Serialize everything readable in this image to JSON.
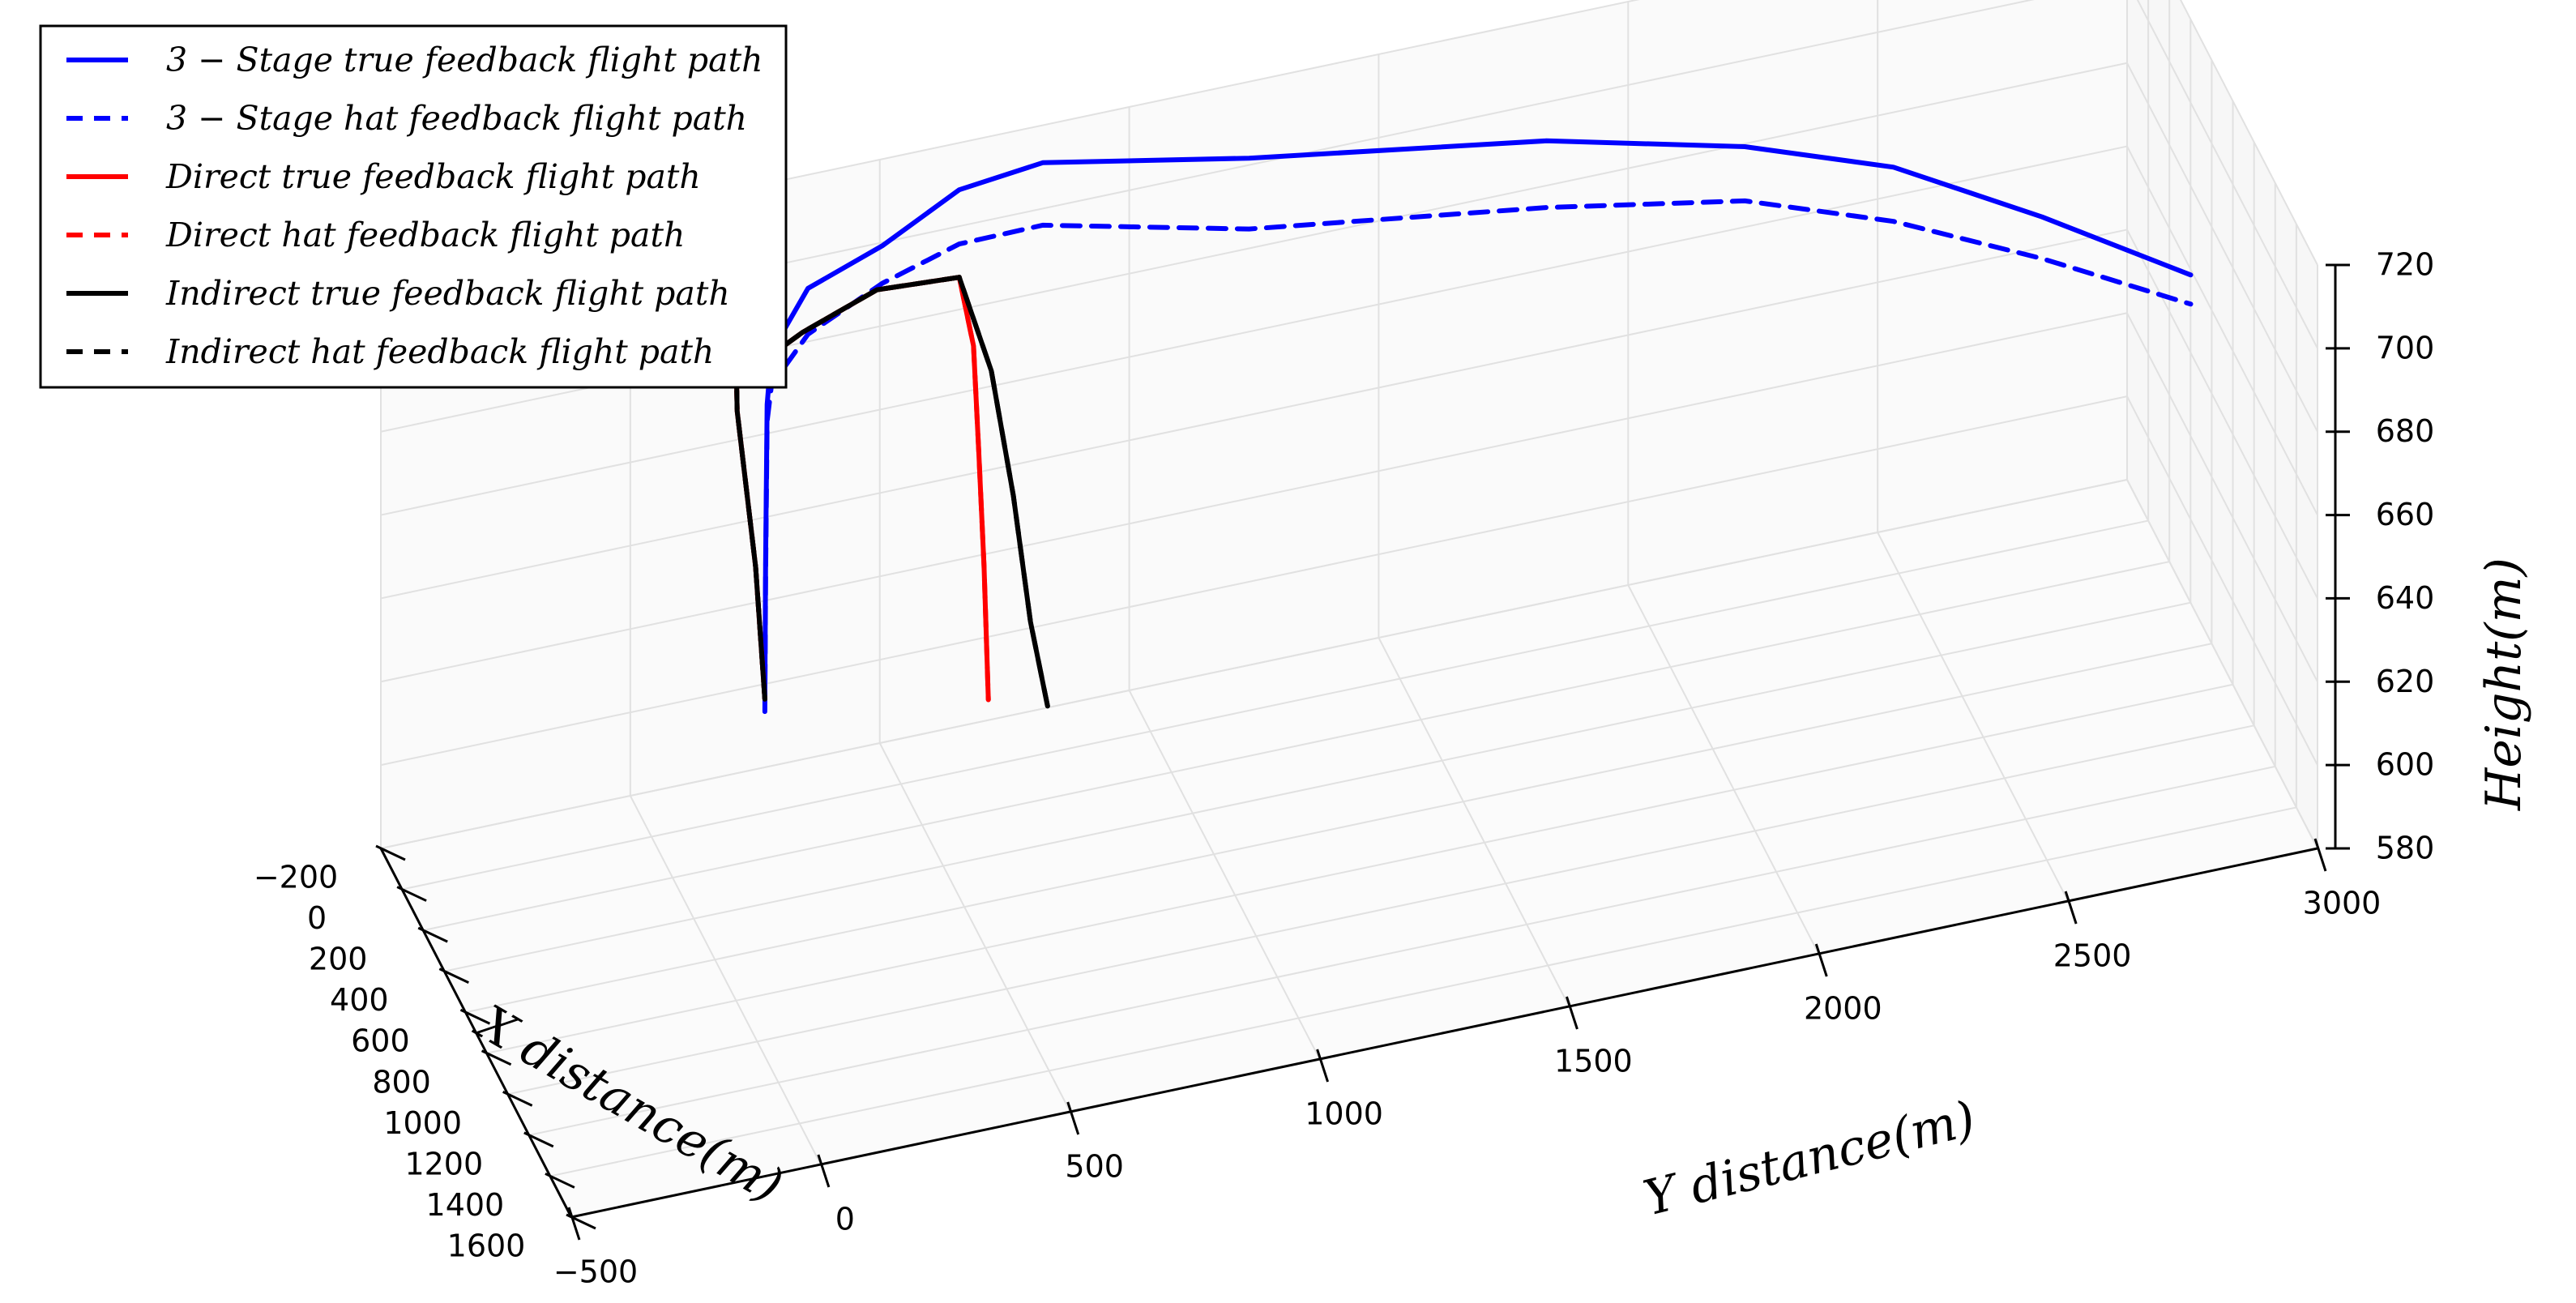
{
  "chart_data": {
    "type": "line",
    "projection": "3d",
    "xlabel": "X distance(m)",
    "ylabel": "Y distance(m)",
    "zlabel": "Height(m)",
    "xlim": [
      -200,
      1600
    ],
    "ylim": [
      -500,
      3000
    ],
    "zlim": [
      580,
      720
    ],
    "xticks": [
      "−200",
      "0",
      "200",
      "400",
      "600",
      "800",
      "1000",
      "1200",
      "1400",
      "1600"
    ],
    "yticks": [
      "−500",
      "0",
      "500",
      "1000",
      "1500",
      "2000",
      "2500",
      "3000"
    ],
    "zticks": [
      "580",
      "600",
      "620",
      "640",
      "660",
      "680",
      "700",
      "720"
    ],
    "grid": true,
    "legend_position": "top-left",
    "series": [
      {
        "name": "3 − Stage true feedback flight path",
        "color": "#0000ff",
        "style": "solid",
        "points": [
          [
            600,
            100,
            640
          ],
          [
            560,
            110,
            670
          ],
          [
            480,
            130,
            704
          ],
          [
            380,
            160,
            711
          ],
          [
            300,
            250,
            720
          ],
          [
            200,
            420,
            721
          ],
          [
            80,
            600,
            724
          ],
          [
            20,
            780,
            723
          ],
          [
            -10,
            1200,
            712
          ],
          [
            -30,
            1800,
            700
          ],
          [
            -40,
            2200,
            688
          ],
          [
            -50,
            2500,
            675
          ],
          [
            -60,
            2800,
            655
          ],
          [
            -70,
            3100,
            633
          ]
        ]
      },
      {
        "name": "3 − Stage hat feedback flight path",
        "color": "#0000ff",
        "style": "dashed",
        "points": [
          [
            600,
            100,
            637
          ],
          [
            560,
            110,
            667
          ],
          [
            480,
            130,
            700
          ],
          [
            380,
            160,
            703
          ],
          [
            300,
            250,
            709
          ],
          [
            200,
            420,
            712
          ],
          [
            80,
            600,
            711
          ],
          [
            20,
            780,
            708
          ],
          [
            -10,
            1200,
            695
          ],
          [
            -30,
            1800,
            684
          ],
          [
            -40,
            2200,
            675
          ],
          [
            -50,
            2500,
            662
          ],
          [
            -60,
            2800,
            645
          ],
          [
            -70,
            3100,
            626
          ]
        ]
      },
      {
        "name": "Direct true feedback flight path",
        "color": "#ff0000",
        "style": "solid",
        "points": [
          [
            600,
            100,
            640
          ],
          [
            560,
            90,
            670
          ],
          [
            480,
            70,
            704
          ],
          [
            380,
            90,
            706
          ],
          [
            250,
            250,
            707
          ],
          [
            150,
            420,
            708
          ],
          [
            80,
            600,
            703
          ],
          [
            120,
            620,
            688
          ],
          [
            170,
            620,
            665
          ],
          [
            220,
            620,
            640
          ],
          [
            260,
            620,
            610
          ]
        ]
      },
      {
        "name": "Direct hat feedback flight path",
        "color": "#ff0000",
        "style": "dashed",
        "points": [
          [
            600,
            100,
            640
          ],
          [
            560,
            90,
            670
          ],
          [
            480,
            70,
            704
          ],
          [
            380,
            90,
            706
          ],
          [
            250,
            250,
            707
          ],
          [
            150,
            420,
            708
          ],
          [
            80,
            600,
            703
          ],
          [
            120,
            620,
            688
          ],
          [
            170,
            620,
            665
          ],
          [
            220,
            620,
            640
          ],
          [
            260,
            620,
            610
          ]
        ]
      },
      {
        "name": "Indirect true feedback flight path",
        "color": "#000000",
        "style": "solid",
        "points": [
          [
            600,
            100,
            640
          ],
          [
            560,
            90,
            670
          ],
          [
            480,
            70,
            704
          ],
          [
            380,
            90,
            706
          ],
          [
            250,
            250,
            707
          ],
          [
            150,
            420,
            708
          ],
          [
            80,
            600,
            703
          ],
          [
            100,
            660,
            680
          ],
          [
            120,
            700,
            650
          ],
          [
            140,
            730,
            620
          ],
          [
            160,
            760,
            600
          ]
        ]
      },
      {
        "name": "Indirect hat feedback flight path",
        "color": "#000000",
        "style": "dashed",
        "points": [
          [
            600,
            100,
            640
          ],
          [
            560,
            90,
            670
          ],
          [
            480,
            70,
            704
          ],
          [
            380,
            90,
            706
          ],
          [
            250,
            250,
            707
          ],
          [
            150,
            420,
            708
          ],
          [
            80,
            600,
            703
          ],
          [
            100,
            660,
            680
          ],
          [
            120,
            700,
            650
          ],
          [
            140,
            730,
            620
          ],
          [
            160,
            760,
            600
          ]
        ]
      }
    ]
  }
}
